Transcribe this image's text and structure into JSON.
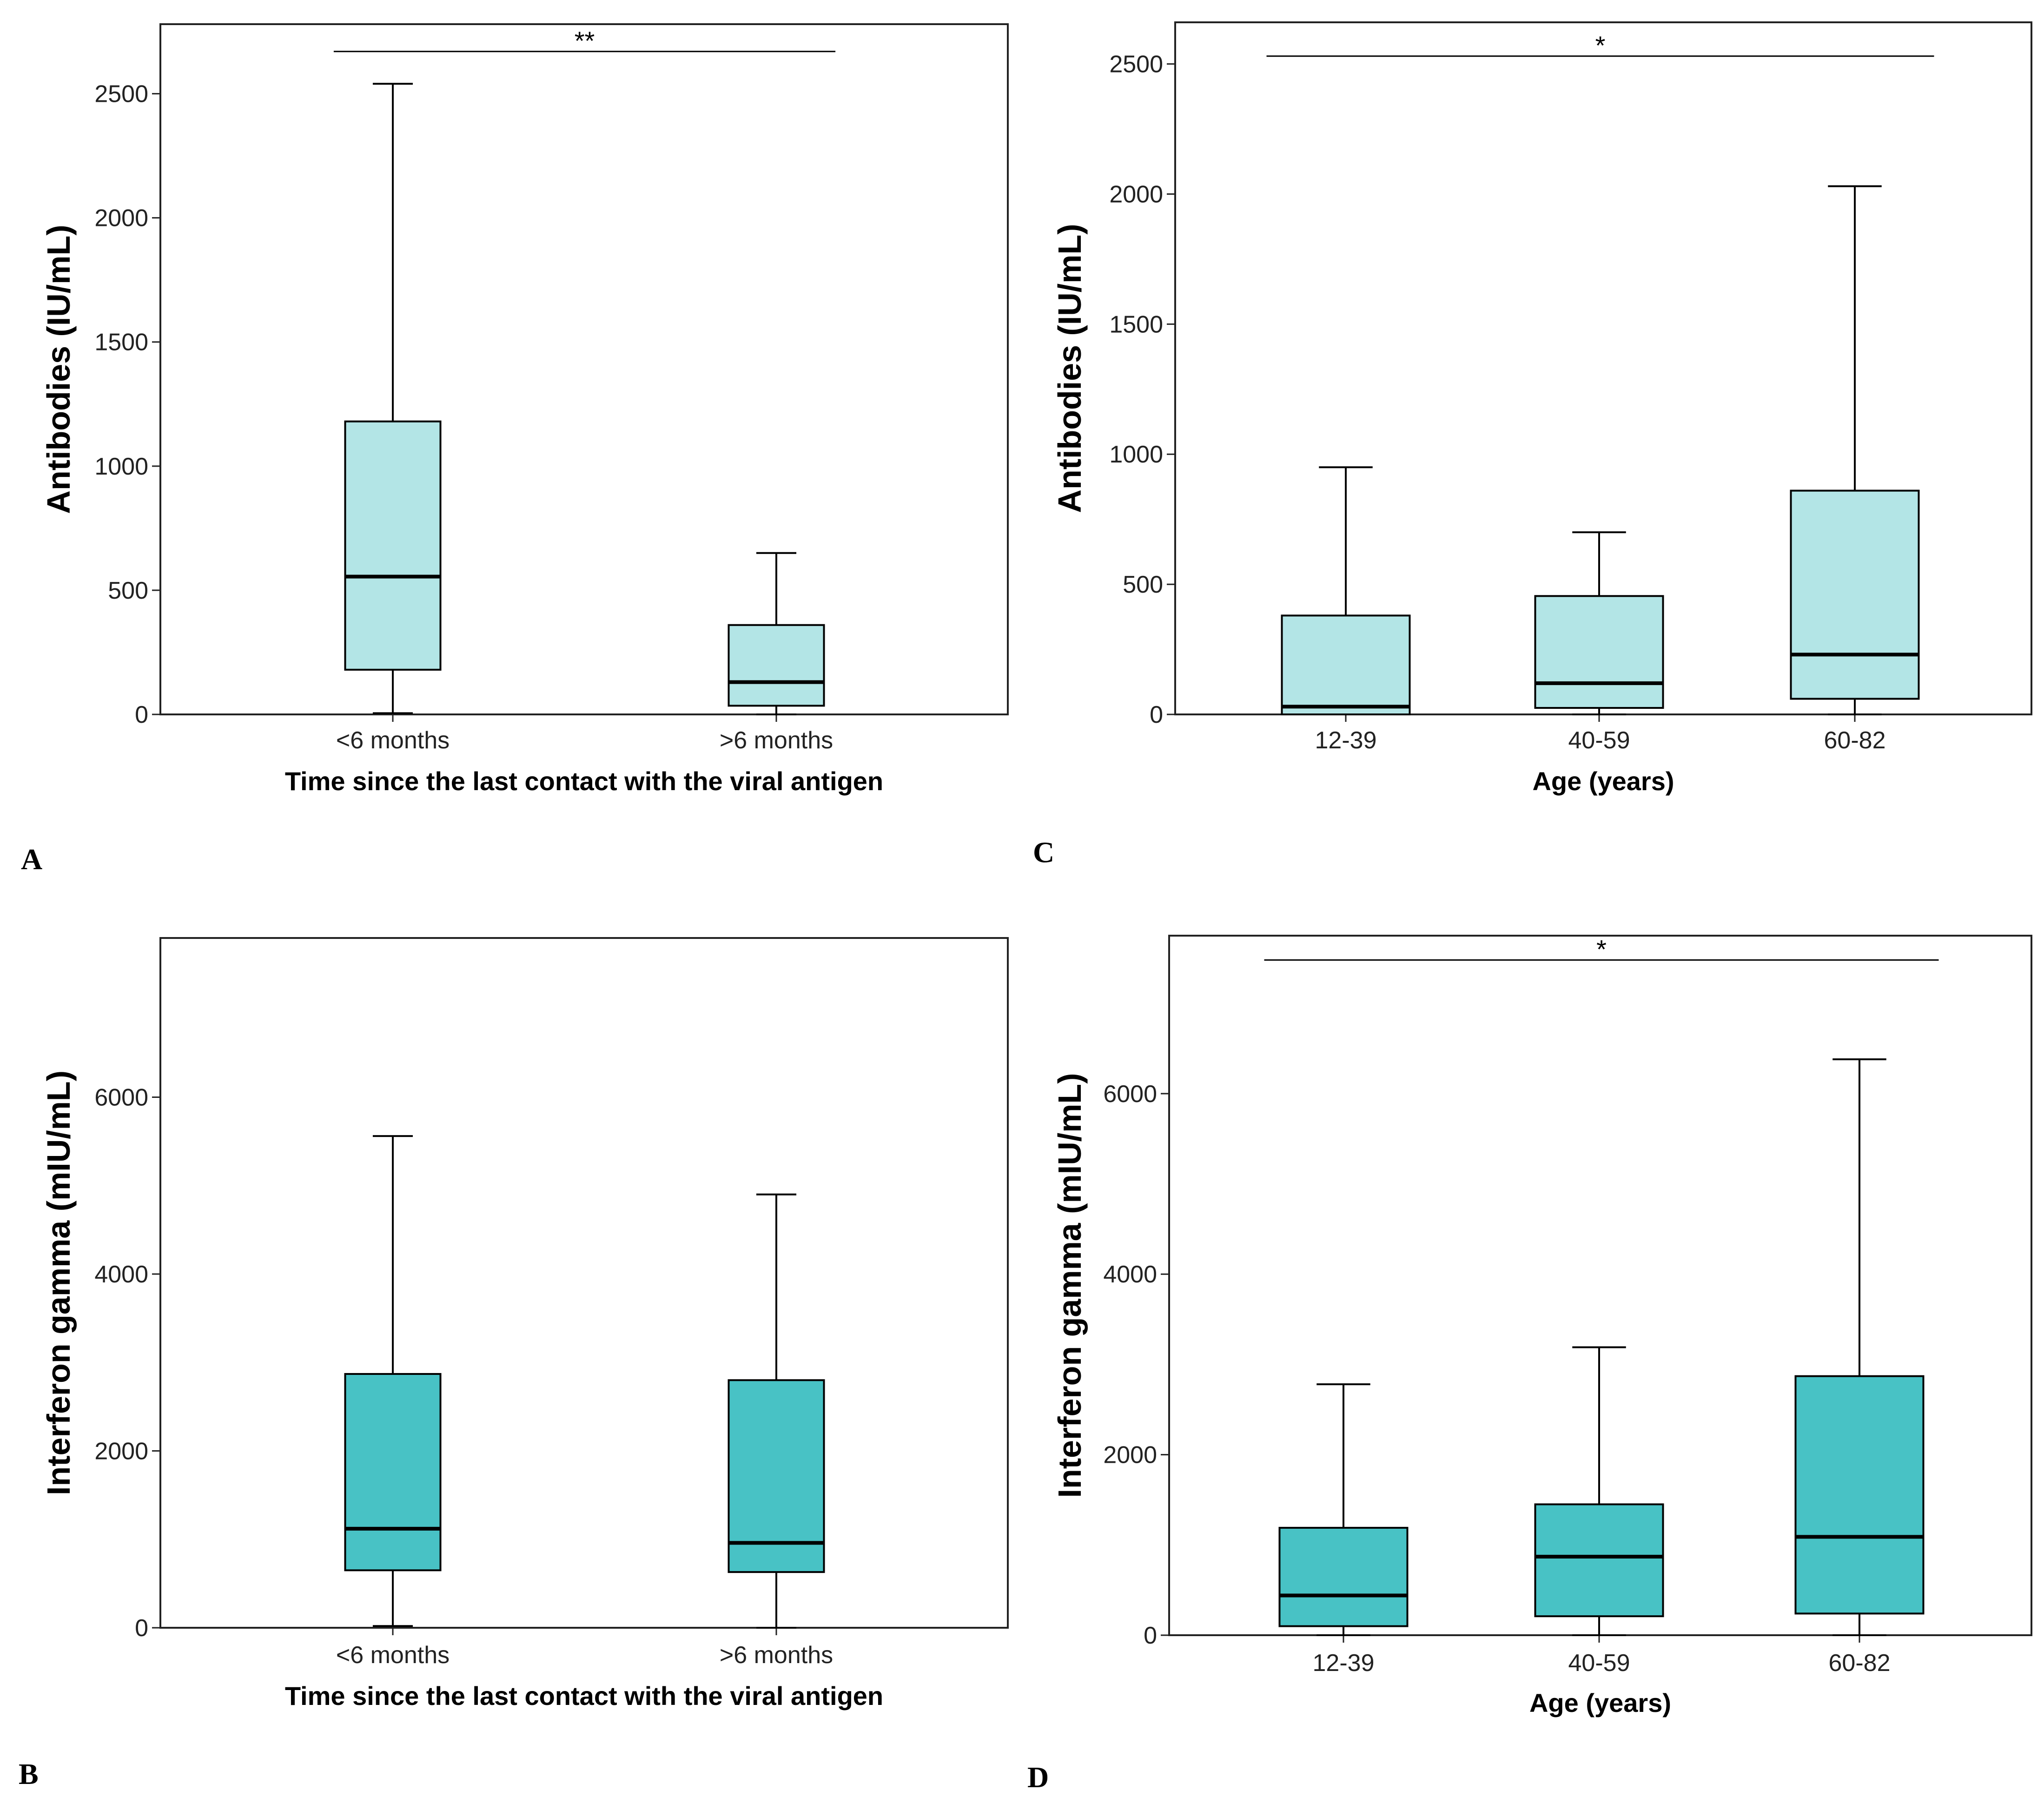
{
  "chart_data": [
    {
      "panel": "A",
      "type": "box",
      "ylabel": "Antibodies (IU/mL)",
      "xlabel": "Time since the last contact with the viral antigen",
      "ylim": [
        0,
        2780
      ],
      "yticks": [
        0,
        500,
        1000,
        1500,
        2000,
        2500
      ],
      "categories": [
        "<6 months",
        ">6 months"
      ],
      "boxes": [
        {
          "min": 5,
          "q1": 180,
          "median": 555,
          "q3": 1180,
          "max": 2540,
          "fill": "#b3e5e6"
        },
        {
          "min": 0,
          "q1": 35,
          "median": 130,
          "q3": 360,
          "max": 650,
          "fill": "#b3e5e6"
        }
      ],
      "significance": {
        "label": "**",
        "value": 2670,
        "from": 0,
        "to": 1
      }
    },
    {
      "panel": "C",
      "type": "box",
      "ylabel": "Antibodies (IU/mL)",
      "xlabel": "Age (years)",
      "ylim": [
        0,
        2660
      ],
      "yticks": [
        0,
        500,
        1000,
        1500,
        2000,
        2500
      ],
      "categories": [
        "12-39",
        "40-59",
        "60-82"
      ],
      "boxes": [
        {
          "min": 0,
          "q1": 0,
          "median": 30,
          "q3": 380,
          "max": 950,
          "fill": "#b3e5e6"
        },
        {
          "min": 0,
          "q1": 25,
          "median": 120,
          "q3": 455,
          "max": 700,
          "fill": "#b3e5e6"
        },
        {
          "min": 0,
          "q1": 60,
          "median": 230,
          "q3": 860,
          "max": 2030,
          "fill": "#b3e5e6"
        }
      ],
      "significance": {
        "label": "*",
        "value": 2530,
        "from": 0,
        "to": 2
      }
    },
    {
      "panel": "B",
      "type": "box",
      "ylabel": "Interferon gamma (mIU/mL)",
      "xlabel": "Time since the last contact with the viral antigen",
      "ylim": [
        0,
        7800
      ],
      "yticks": [
        0,
        2000,
        4000,
        6000
      ],
      "categories": [
        "<6 months",
        ">6 months"
      ],
      "boxes": [
        {
          "min": 20,
          "q1": 650,
          "median": 1120,
          "q3": 2870,
          "max": 5560,
          "fill": "#48c2c5"
        },
        {
          "min": 0,
          "q1": 630,
          "median": 960,
          "q3": 2800,
          "max": 4900,
          "fill": "#48c2c5"
        }
      ],
      "significance": null
    },
    {
      "panel": "D",
      "type": "box",
      "ylabel": "Interferon gamma (mIU/mL)",
      "xlabel": "Age (years)",
      "ylim": [
        0,
        7750
      ],
      "yticks": [
        0,
        2000,
        4000,
        6000
      ],
      "categories": [
        "12-39",
        "40-59",
        "60-82"
      ],
      "boxes": [
        {
          "min": 0,
          "q1": 100,
          "median": 440,
          "q3": 1190,
          "max": 2780,
          "fill": "#48c2c5"
        },
        {
          "min": 0,
          "q1": 210,
          "median": 870,
          "q3": 1450,
          "max": 3190,
          "fill": "#48c2c5"
        },
        {
          "min": 0,
          "q1": 240,
          "median": 1090,
          "q3": 2870,
          "max": 6380,
          "fill": "#48c2c5"
        }
      ],
      "significance": {
        "label": "*",
        "value": 7480,
        "from": 0,
        "to": 2
      }
    }
  ]
}
